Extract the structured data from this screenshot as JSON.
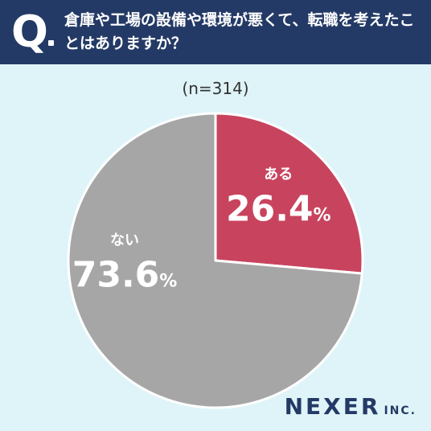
{
  "header": {
    "q_letter": "Q",
    "question": "倉庫や工場の設備や環境が悪くて、転職を考えたことはありますか？"
  },
  "sample_size": "(n=314)",
  "brand": {
    "name": "NEXER",
    "suffix": "INC."
  },
  "colors": {
    "header_bg": "#243a66",
    "background": "#dff4f8",
    "slice_yes": "#c8445e",
    "slice_no": "#a6a6a6"
  },
  "chart_data": {
    "type": "pie",
    "labels": [
      "ある",
      "ない"
    ],
    "values": [
      26.4,
      73.6
    ],
    "value_labels": [
      "26.4",
      "73.6"
    ],
    "unit": "%",
    "colors": [
      "#c8445e",
      "#a6a6a6"
    ],
    "start": "12 o'clock",
    "direction": "clockwise"
  }
}
